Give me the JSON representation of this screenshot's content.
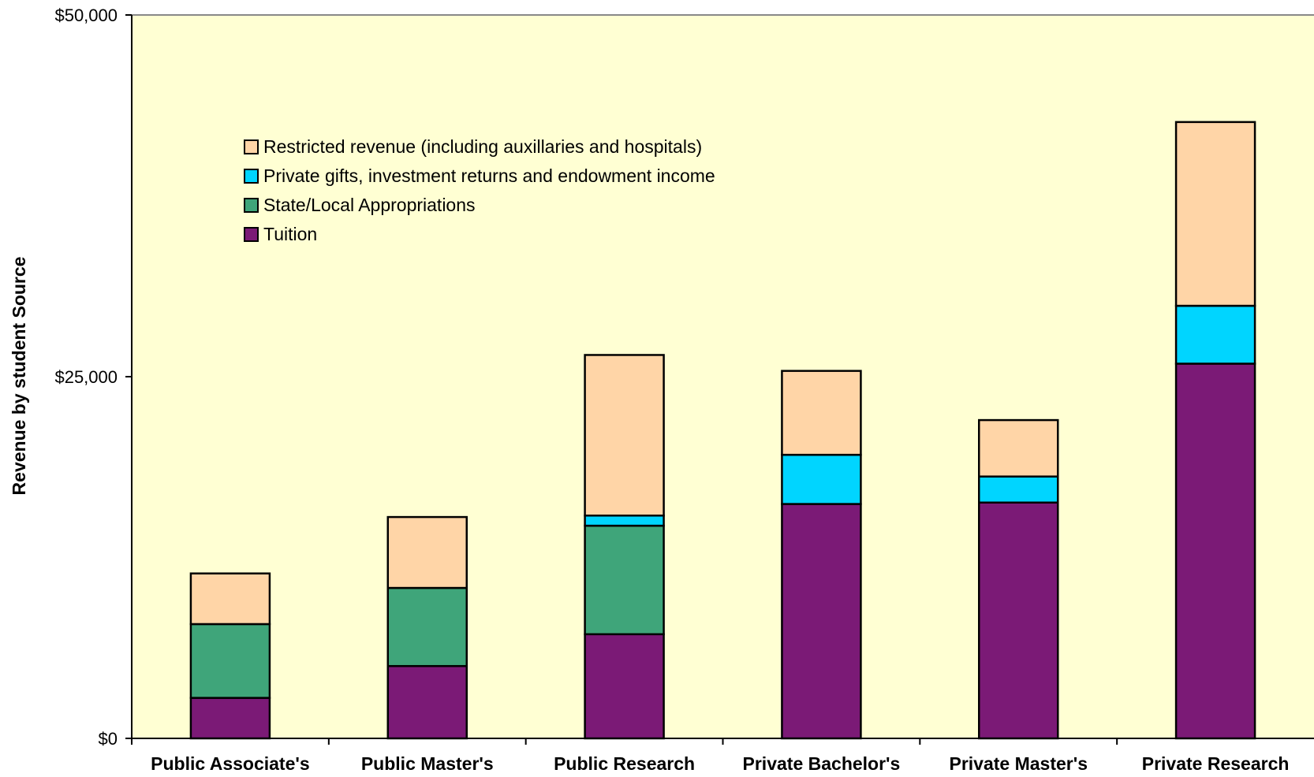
{
  "chart_data": {
    "type": "bar",
    "stacked": true,
    "title": "",
    "xlabel": "",
    "ylabel": "Revenue by student Source",
    "ylim": [
      0,
      50000
    ],
    "yticks": [
      {
        "value": 0,
        "label": "$0"
      },
      {
        "value": 25000,
        "label": "$25,000"
      },
      {
        "value": 50000,
        "label": "$50,000"
      }
    ],
    "grid": false,
    "legend_position": "top-left",
    "plot_background": "#FFFFD3",
    "categories": [
      "Public Associate's",
      "Public Master's",
      "Public Research",
      "Private Bachelor's",
      "Private Master's",
      "Private Research"
    ],
    "series": [
      {
        "name": "Tuition",
        "color": "#7B1A76",
        "values": [
          2800,
          5000,
          7200,
          16200,
          16300,
          25900
        ]
      },
      {
        "name": "State/Local Appropriations",
        "color": "#3FA57A",
        "values": [
          5100,
          5400,
          7500,
          0,
          0,
          0
        ]
      },
      {
        "name": "Private gifts, investment returns and endowment income",
        "color": "#00D5FF",
        "values": [
          0,
          0,
          700,
          3400,
          1800,
          4000
        ]
      },
      {
        "name": "Restricted revenue (including auxillaries and hospitals)",
        "color": "#FFD5A7",
        "values": [
          3500,
          4900,
          11100,
          5800,
          3900,
          12700
        ]
      }
    ],
    "legend_order": [
      "Restricted revenue (including auxillaries and hospitals)",
      "Private gifts, investment returns and endowment income",
      "State/Local Appropriations",
      "Tuition"
    ]
  }
}
